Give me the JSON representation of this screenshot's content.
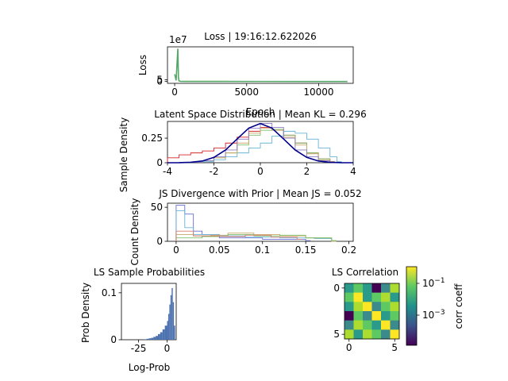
{
  "chart_data": [
    {
      "type": "line",
      "title": "Loss | 19:16:12.622026",
      "xlabel": "Epoch",
      "ylabel": "Loss",
      "offset_label": "1e7",
      "xlim": [
        -500,
        12400
      ],
      "ylim": [
        -5,
        95
      ],
      "xticks": [
        0,
        5000,
        10000
      ],
      "yticks": [
        0,
        5
      ],
      "series": [
        {
          "color": "#54a867",
          "x": [
            0,
            100,
            220,
            260,
            300,
            400,
            600,
            1000,
            3000,
            6000,
            9000,
            12000
          ],
          "y": [
            20,
            3,
            90,
            12,
            1.5,
            0.6,
            0.3,
            0.25,
            0.2,
            0.15,
            0.12,
            0.1
          ]
        }
      ]
    },
    {
      "type": "line",
      "title": "Latent Space Distribution | Mean KL = 0.296",
      "xlabel": "",
      "ylabel": "Sample Density",
      "xlim": [
        -4,
        4
      ],
      "ylim": [
        0,
        0.42
      ],
      "xticks": [
        -4,
        -2,
        0,
        2,
        4
      ],
      "yticks": [
        0.0,
        0.25
      ],
      "series": [
        {
          "color": "#d62728",
          "x": [
            -4,
            -3.5,
            -3,
            -2.5,
            -2,
            -1.5,
            -1,
            -0.5,
            0,
            0.5,
            1,
            1.5,
            2,
            2.5,
            3
          ],
          "y": [
            0.05,
            0.08,
            0.1,
            0.12,
            0.15,
            0.2,
            0.26,
            0.32,
            0.36,
            0.34,
            0.28,
            0.2,
            0.1,
            0.04,
            0.01
          ]
        },
        {
          "color": "#6ab4d6",
          "x": [
            -2.5,
            -2,
            -1.5,
            -1,
            -0.5,
            0,
            0.5,
            1,
            1.5,
            2,
            2.5,
            3,
            3.3
          ],
          "y": [
            0.01,
            0.03,
            0.06,
            0.1,
            0.15,
            0.2,
            0.27,
            0.32,
            0.3,
            0.24,
            0.15,
            0.06,
            0.01
          ]
        },
        {
          "color": "#7bbf6a",
          "x": [
            -2.5,
            -2,
            -1.5,
            -1,
            -0.5,
            0,
            0.5,
            1,
            1.5,
            2,
            2.5,
            3
          ],
          "y": [
            0.02,
            0.05,
            0.1,
            0.18,
            0.28,
            0.33,
            0.34,
            0.28,
            0.2,
            0.1,
            0.04,
            0.01
          ]
        },
        {
          "color": "#c9a86a",
          "x": [
            -2.5,
            -2,
            -1.5,
            -1,
            -0.5,
            0,
            0.5,
            1,
            1.5,
            2,
            2.5,
            3
          ],
          "y": [
            0.02,
            0.05,
            0.1,
            0.2,
            0.3,
            0.35,
            0.33,
            0.26,
            0.18,
            0.09,
            0.03,
            0.01
          ]
        },
        {
          "color": "#8e7cc3",
          "x": [
            -3,
            -2.5,
            -2,
            -1.5,
            -1,
            -0.5,
            0,
            0.5,
            1,
            1.5,
            2,
            2.5,
            3
          ],
          "y": [
            0.005,
            0.02,
            0.06,
            0.13,
            0.24,
            0.35,
            0.4,
            0.36,
            0.25,
            0.13,
            0.06,
            0.02,
            0.005
          ]
        },
        {
          "color": "#00008b",
          "x": [
            -4,
            -3.5,
            -3,
            -2.5,
            -2,
            -1.5,
            -1,
            -0.5,
            0,
            0.5,
            1,
            1.5,
            2,
            2.5,
            3,
            3.5,
            4
          ],
          "y": [
            0.0001,
            0.0009,
            0.0044,
            0.0175,
            0.054,
            0.1295,
            0.242,
            0.352,
            0.399,
            0.352,
            0.242,
            0.1295,
            0.054,
            0.0175,
            0.0044,
            0.0009,
            0.0001
          ]
        }
      ]
    },
    {
      "type": "line",
      "title": "JS Divergence with Prior | Mean JS = 0.052",
      "xlabel": "",
      "ylabel": "Count Density",
      "xlim": [
        -0.01,
        0.205
      ],
      "ylim": [
        0,
        56
      ],
      "xticks": [
        0.0,
        0.05,
        0.1,
        0.15,
        0.2
      ],
      "yticks": [
        0,
        50
      ],
      "series": [
        {
          "color": "#6a6fd6",
          "x": [
            0,
            0.01,
            0.02,
            0.03,
            0.05,
            0.1,
            0.15
          ],
          "y": [
            53,
            40,
            15,
            10,
            5,
            3,
            1
          ]
        },
        {
          "color": "#6ab4d6",
          "x": [
            0,
            0.01,
            0.02,
            0.05,
            0.08,
            0.12,
            0.16,
            0.18
          ],
          "y": [
            45,
            20,
            10,
            8,
            6,
            5,
            4,
            1
          ]
        },
        {
          "color": "#c9a86a",
          "x": [
            0,
            0.02,
            0.04,
            0.06,
            0.09,
            0.12,
            0.15,
            0.18
          ],
          "y": [
            10,
            8,
            9,
            12,
            10,
            8,
            5,
            0
          ]
        },
        {
          "color": "#7bbf6a",
          "x": [
            0,
            0.03,
            0.06,
            0.09,
            0.12,
            0.15,
            0.18
          ],
          "y": [
            5,
            7,
            10,
            8,
            9,
            5,
            1
          ]
        },
        {
          "color": "#d67a6a",
          "x": [
            0,
            0.02,
            0.05,
            0.08,
            0.11,
            0.14
          ],
          "y": [
            15,
            8,
            7,
            9,
            6,
            3
          ]
        }
      ]
    },
    {
      "type": "bar",
      "title": "LS Sample Probabilities",
      "xlabel": "Log-Prob",
      "ylabel": "Prob Density",
      "xlim": [
        -40,
        8
      ],
      "ylim": [
        0,
        0.12
      ],
      "xticks": [
        -25,
        0
      ],
      "yticks": [
        0.0,
        0.1
      ],
      "bar_color": "#4c72b0",
      "bins": [
        -20,
        -18,
        -16,
        -14,
        -12,
        -10,
        -8,
        -6,
        -4,
        -2,
        0,
        1,
        2,
        3,
        4,
        5,
        6
      ],
      "values": [
        0.001,
        0.002,
        0.003,
        0.004,
        0.006,
        0.008,
        0.012,
        0.016,
        0.022,
        0.03,
        0.04,
        0.055,
        0.075,
        0.095,
        0.11,
        0.08,
        0.03
      ]
    },
    {
      "type": "heatmap",
      "title": "LS Correlation",
      "xticks": [
        0,
        5
      ],
      "yticks": [
        0,
        5
      ],
      "colorbar_label": "corr coeff",
      "colorbar_ticks": [
        "10^-1",
        "10^-3"
      ],
      "colors": [
        [
          "#2a9a8a",
          "#5ec962",
          "#2a9a8a",
          "#440154",
          "#3b8a8c",
          "#addc30"
        ],
        [
          "#5ec962",
          "#fde725",
          "#2a9a8a",
          "#5ec962",
          "#addc30",
          "#2a9a8a"
        ],
        [
          "#2a9a8a",
          "#addc30",
          "#fde725",
          "#3b8a8c",
          "#5ec962",
          "#addc30"
        ],
        [
          "#440154",
          "#5ec962",
          "#3b8a8c",
          "#fde725",
          "#2a9a8a",
          "#5ec962"
        ],
        [
          "#3b8a8c",
          "#addc30",
          "#5ec962",
          "#2a9a8a",
          "#fde725",
          "#3b8a8c"
        ],
        [
          "#addc30",
          "#2a9a8a",
          "#addc30",
          "#5ec962",
          "#3b8a8c",
          "#fde725"
        ]
      ]
    }
  ]
}
